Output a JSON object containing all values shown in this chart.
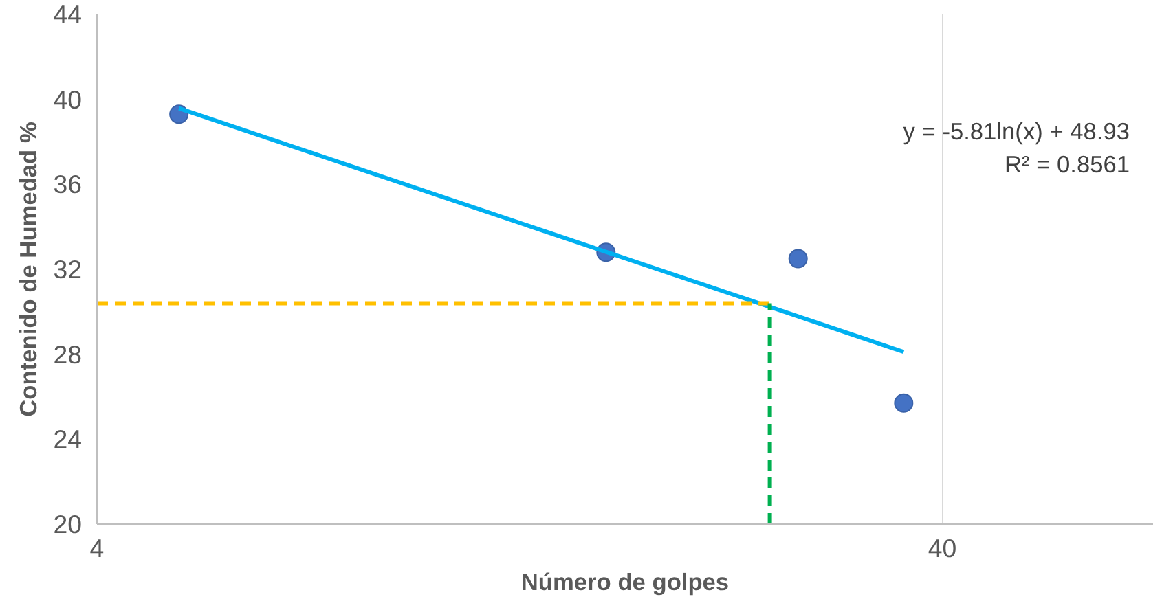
{
  "chart_data": {
    "type": "scatter",
    "xlabel": "Número de golpes",
    "ylabel": "Contenido de Humedad %",
    "log": "x",
    "xlim": [
      4,
      71
    ],
    "xticks": [
      4,
      40
    ],
    "ylim": [
      20,
      44
    ],
    "yticks": [
      20,
      24,
      28,
      32,
      36,
      40,
      44
    ],
    "grid": "x",
    "marker": "circle",
    "series": [
      {
        "color": "#4472c4",
        "x": [
          5,
          16,
          27,
          36
        ],
        "values": [
          39.3,
          32.8,
          32.5,
          25.7
        ]
      },
      {
        "type": "line",
        "color": "#00b0f0",
        "x": [
          5,
          36
        ],
        "values": [
          39.58,
          28.11
        ],
        "line_style": "solid",
        "marker": "none"
      },
      {
        "type": "line",
        "color": "#ffc000",
        "x": [
          4,
          25
        ],
        "values": [
          30.4,
          30.4
        ],
        "line_style": "dashed",
        "marker": "none"
      },
      {
        "type": "line",
        "color": "#00b050",
        "x": [
          25,
          25
        ],
        "values": [
          20,
          30.4
        ],
        "line_style": "dashed",
        "marker": "none"
      }
    ],
    "annotations": [
      "y = -5.81ln(x) + 48.93",
      "R² = 0.8561"
    ]
  }
}
